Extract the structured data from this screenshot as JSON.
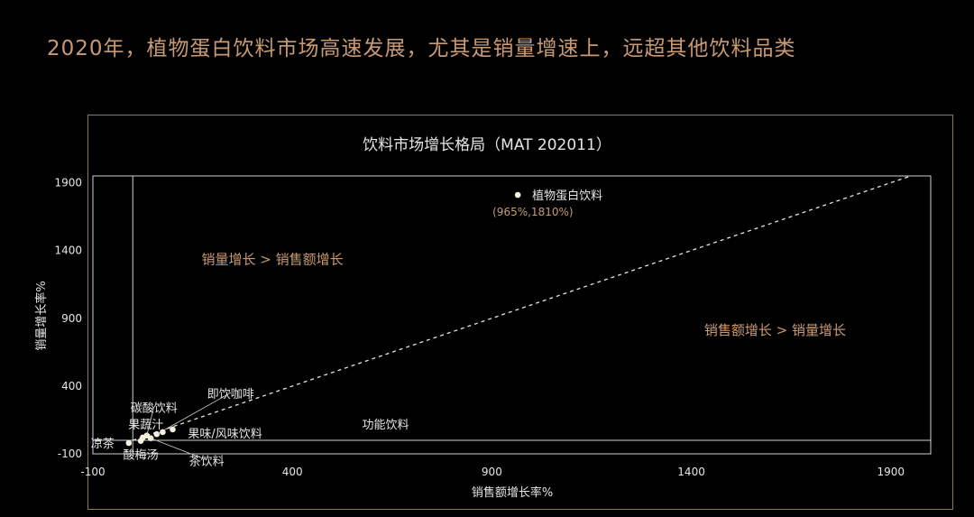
{
  "headline": "2020年，植物蛋白饮料市场高速发展，尤其是销量增速上，远超其他饮料品类",
  "colors": {
    "background": "#000000",
    "headline": "#c99a72",
    "panel_border": "#8a7a55",
    "axis": "#cfcfcf",
    "text": "#e6e6e6",
    "accent_label": "#c99a72",
    "point": "#f5f1e0"
  },
  "chart_data": {
    "type": "scatter",
    "title": "饮料市场增长格局（MAT 202011）",
    "xlabel": "销售额增长率%",
    "ylabel": "销量增长率%",
    "xlim": [
      -100,
      2000
    ],
    "ylim": [
      -100,
      1950
    ],
    "x_ticks": [
      -100,
      400,
      900,
      1400,
      1900
    ],
    "y_ticks": [
      -100,
      400,
      900,
      1400,
      1900
    ],
    "grid": false,
    "diagonal_reference": "y = x",
    "points": [
      {
        "name": "植物蛋白饮料",
        "x": 965,
        "y": 1810,
        "label": "植物蛋白饮料",
        "value_label": "(965%,1810%)"
      },
      {
        "name": "凉茶",
        "x": -10,
        "y": -20,
        "label": "凉茶"
      },
      {
        "name": "酸梅汤",
        "x": 20,
        "y": -5,
        "label": "酸梅汤"
      },
      {
        "name": "果蔬汁",
        "x": 25,
        "y": 20,
        "label": "果蔬汁"
      },
      {
        "name": "碳酸饮料",
        "x": 35,
        "y": 35,
        "label": "碳酸饮料"
      },
      {
        "name": "茶饮料",
        "x": 45,
        "y": 15,
        "label": "茶饮料"
      },
      {
        "name": "即饮咖啡",
        "x": 60,
        "y": 45,
        "label": "即饮咖啡"
      },
      {
        "name": "果味/风味饮料",
        "x": 75,
        "y": 60,
        "label": "果味/风味饮料"
      },
      {
        "name": "功能饮料",
        "x": 100,
        "y": 80,
        "label": "功能饮料"
      }
    ],
    "annotations": [
      {
        "text": "销量增长 > 销售额增长",
        "x": 350,
        "y": 1300
      },
      {
        "text": "销售额增长 > 销量增长",
        "x": 1610,
        "y": 780
      }
    ]
  }
}
